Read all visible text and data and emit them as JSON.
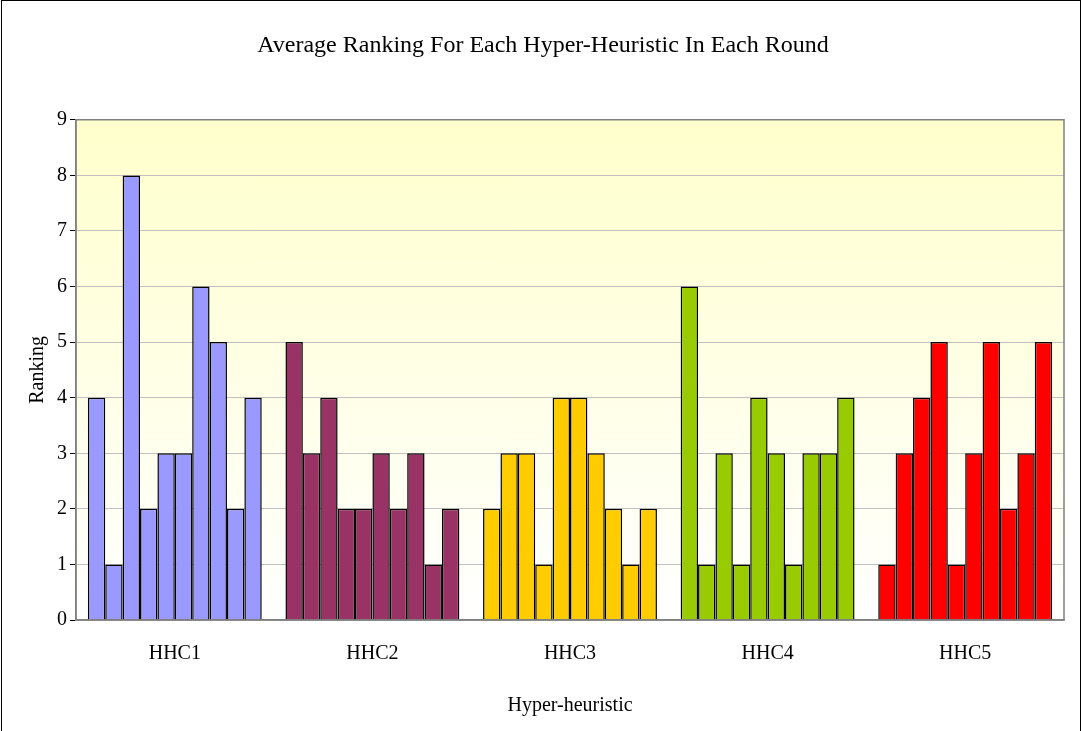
{
  "chart_data": {
    "type": "bar",
    "title": "Average Ranking For Each Hyper-Heuristic In Each Round",
    "xlabel": "Hyper-heuristic",
    "ylabel": "Ranking",
    "categories": [
      "HHC1",
      "HHC2",
      "HHC3",
      "HHC4",
      "HHC5"
    ],
    "series": [
      {
        "colors": [
          "#9999ff",
          "#993366",
          "#ffcc00",
          "#99cc00",
          "#ff0000"
        ],
        "values": [
          4,
          5,
          2,
          6,
          1
        ]
      },
      {
        "colors": [
          "#9999ff",
          "#993366",
          "#ffcc00",
          "#99cc00",
          "#ff0000"
        ],
        "values": [
          1,
          3,
          3,
          1,
          3
        ]
      },
      {
        "colors": [
          "#9999ff",
          "#993366",
          "#ffcc00",
          "#99cc00",
          "#ff0000"
        ],
        "values": [
          8,
          4,
          3,
          3,
          4
        ]
      },
      {
        "colors": [
          "#9999ff",
          "#993366",
          "#ffcc00",
          "#99cc00",
          "#ff0000"
        ],
        "values": [
          2,
          2,
          1,
          1,
          5
        ]
      },
      {
        "colors": [
          "#9999ff",
          "#993366",
          "#ffcc00",
          "#99cc00",
          "#ff0000"
        ],
        "values": [
          3,
          2,
          4,
          4,
          1
        ]
      },
      {
        "colors": [
          "#9999ff",
          "#993366",
          "#ffcc00",
          "#99cc00",
          "#ff0000"
        ],
        "values": [
          3,
          3,
          4,
          3,
          3
        ]
      },
      {
        "colors": [
          "#9999ff",
          "#993366",
          "#ffcc00",
          "#99cc00",
          "#ff0000"
        ],
        "values": [
          6,
          2,
          3,
          1,
          5
        ]
      },
      {
        "colors": [
          "#9999ff",
          "#993366",
          "#ffcc00",
          "#99cc00",
          "#ff0000"
        ],
        "values": [
          5,
          3,
          2,
          3,
          2
        ]
      },
      {
        "colors": [
          "#9999ff",
          "#993366",
          "#ffcc00",
          "#99cc00",
          "#ff0000"
        ],
        "values": [
          2,
          1,
          1,
          3,
          3
        ]
      },
      {
        "colors": [
          "#9999ff",
          "#993366",
          "#ffcc00",
          "#99cc00",
          "#ff0000"
        ],
        "values": [
          4,
          2,
          2,
          4,
          5
        ]
      }
    ],
    "ylim": [
      0,
      9
    ],
    "yticks": [
      0,
      1,
      2,
      3,
      4,
      5,
      6,
      7,
      8,
      9
    ],
    "grid": "y",
    "legend": false
  }
}
